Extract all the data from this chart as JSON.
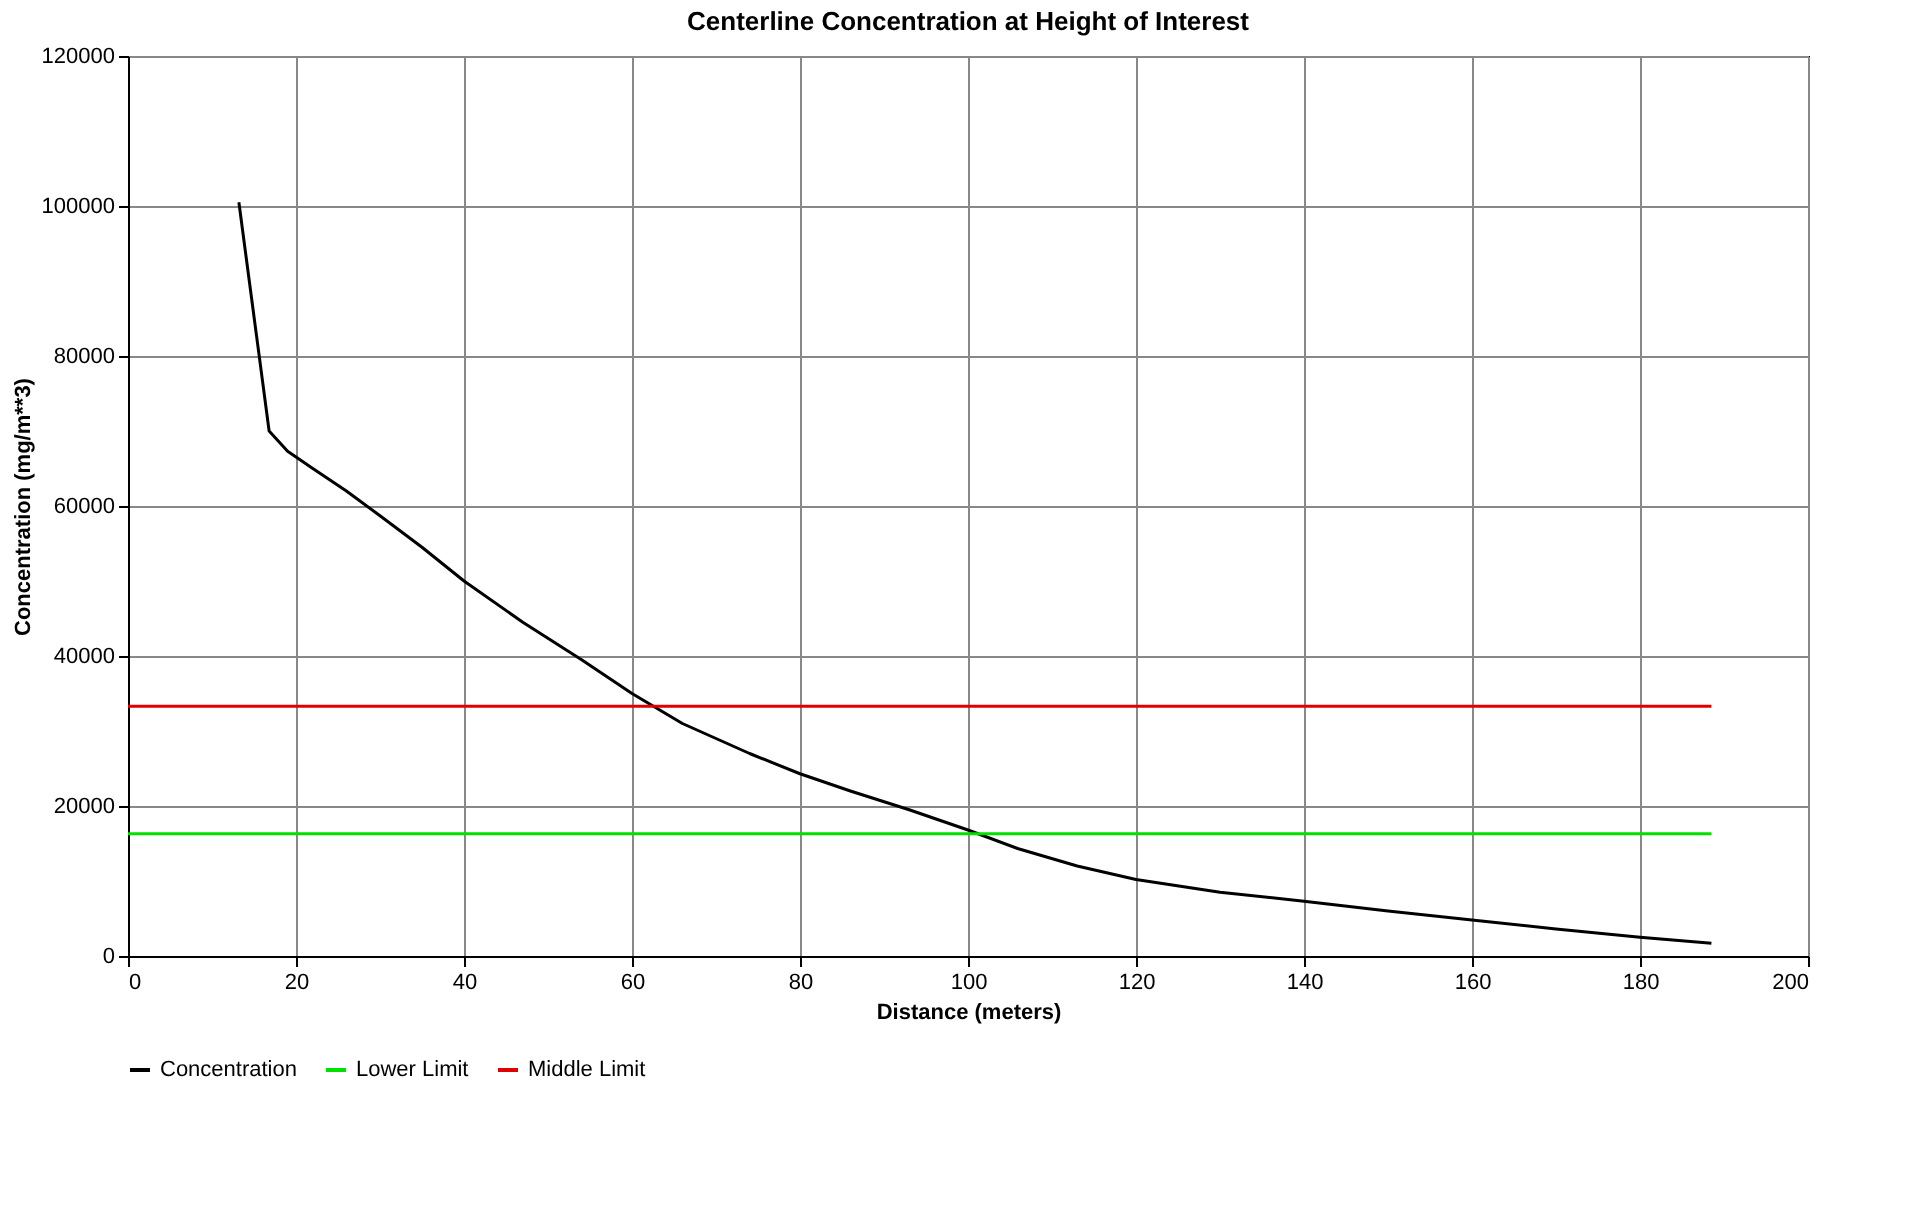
{
  "chart_data": {
    "type": "line",
    "title": "Centerline Concentration at Height of Interest",
    "xlabel": "Distance (meters)",
    "ylabel": "Concentration (mg/m**3)",
    "xlim": [
      0,
      200
    ],
    "xticks": [
      0,
      20,
      40,
      60,
      80,
      100,
      120,
      140,
      160,
      180,
      200
    ],
    "ylim": [
      0,
      120000
    ],
    "yticks": [
      0,
      20000,
      40000,
      60000,
      80000,
      100000,
      120000
    ],
    "grid": true,
    "legend": "bottom",
    "marker": "none",
    "line_style": "solid",
    "series": [
      {
        "name": "Concentration",
        "color": "#000000",
        "x": [
          13.2,
          16.8,
          19,
          22,
          26,
          30,
          35,
          40,
          47,
          54,
          60,
          66,
          74,
          80,
          86,
          93,
          100,
          106,
          113,
          120,
          130,
          140,
          150,
          160,
          170,
          180,
          188.5
        ],
        "values": [
          100500,
          70000,
          67300,
          65000,
          62000,
          58700,
          54500,
          50000,
          44500,
          39500,
          35000,
          31000,
          27000,
          24300,
          22000,
          19500,
          16800,
          14300,
          12000,
          10200,
          8500,
          7300,
          6000,
          4800,
          3600,
          2500,
          1700
        ]
      },
      {
        "name": "Lower Limit",
        "color": "#00e000",
        "x": [
          0,
          188.5
        ],
        "values": [
          16300,
          16300
        ]
      },
      {
        "name": "Middle Limit",
        "color": "#e00000",
        "x": [
          0,
          188.5
        ],
        "values": [
          33300,
          33300
        ]
      }
    ]
  }
}
